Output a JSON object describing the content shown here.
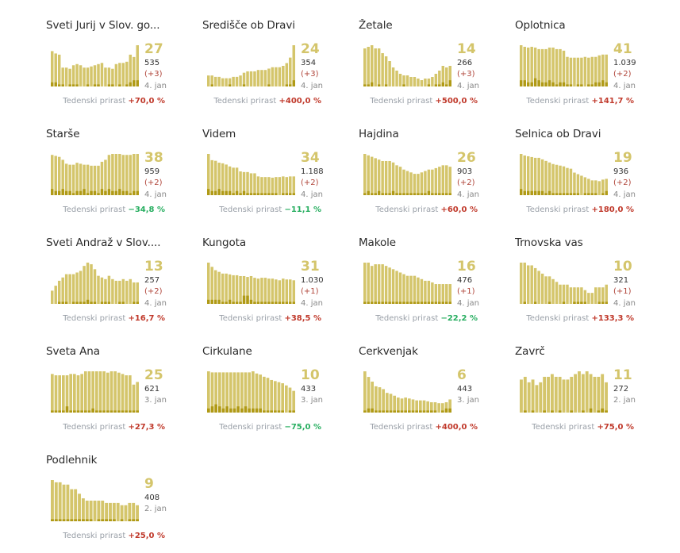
{
  "colors": {
    "bar_light": "#d4c56b",
    "bar_dark": "#b09a16",
    "accent": "#d4c56b",
    "increase": "#c0392b",
    "decrease": "#27ae60"
  },
  "weekly_label": "Tedenski prirast",
  "chart_data": [
    {
      "type": "bar",
      "title": "Sveti Jurij v Slov. go...",
      "active": 27,
      "total": "535",
      "delta": "(+3)",
      "date": "4. jan",
      "weekly": "+70,0 %",
      "weekly_trend": "up",
      "values": [
        30,
        28,
        27,
        16,
        16,
        15,
        18,
        19,
        18,
        16,
        16,
        17,
        18,
        19,
        20,
        16,
        16,
        15,
        19,
        20,
        20,
        21,
        27,
        25,
        35
      ],
      "new_cases": [
        2,
        2,
        1,
        1,
        0,
        1,
        1,
        1,
        0,
        0,
        1,
        0,
        1,
        1,
        0,
        0,
        1,
        1,
        0,
        1,
        0,
        1,
        2,
        3,
        3
      ]
    },
    {
      "type": "bar",
      "title": "Središče ob Dravi",
      "active": 24,
      "total": "354",
      "delta": "(+3)",
      "date": "4. jan",
      "weekly": "+400,0 %",
      "weekly_trend": "up",
      "values": [
        8,
        8,
        7,
        7,
        6,
        6,
        6,
        7,
        7,
        8,
        10,
        11,
        11,
        11,
        12,
        12,
        12,
        13,
        14,
        14,
        14,
        15,
        17,
        21,
        30
      ],
      "new_cases": [
        0,
        1,
        0,
        0,
        0,
        0,
        1,
        0,
        0,
        0,
        1,
        0,
        0,
        0,
        0,
        0,
        0,
        1,
        0,
        0,
        0,
        0,
        1,
        1,
        3
      ]
    },
    {
      "type": "bar",
      "title": "Žetale",
      "active": 14,
      "total": "266",
      "delta": "(+3)",
      "date": "4. jan",
      "weekly": "+500,0 %",
      "weekly_trend": "up",
      "values": [
        24,
        25,
        26,
        24,
        24,
        21,
        19,
        16,
        12,
        10,
        8,
        7,
        7,
        6,
        6,
        5,
        4,
        5,
        5,
        6,
        8,
        10,
        13,
        12,
        13
      ],
      "new_cases": [
        1,
        1,
        2,
        0,
        1,
        0,
        1,
        0,
        0,
        0,
        0,
        1,
        0,
        0,
        0,
        0,
        0,
        0,
        1,
        0,
        1,
        1,
        2,
        1,
        3
      ]
    },
    {
      "type": "bar",
      "title": "Oplotnica",
      "active": 41,
      "total": "1.039",
      "delta": "(+2)",
      "date": "4. jan",
      "weekly": "+141,7 %",
      "weekly_trend": "up",
      "values": [
        53,
        51,
        50,
        51,
        50,
        48,
        48,
        48,
        50,
        50,
        48,
        48,
        46,
        38,
        37,
        37,
        37,
        37,
        38,
        37,
        38,
        38,
        40,
        41,
        41
      ],
      "new_cases": [
        3,
        3,
        2,
        2,
        4,
        3,
        2,
        2,
        3,
        2,
        1,
        2,
        2,
        1,
        1,
        0,
        1,
        1,
        0,
        1,
        1,
        2,
        2,
        3,
        2
      ]
    },
    {
      "type": "bar",
      "title": "Starše",
      "active": 38,
      "total": "959",
      "delta": "(+2)",
      "date": "4. jan",
      "weekly": "−34,8 %",
      "weekly_trend": "down",
      "values": [
        41,
        40,
        39,
        36,
        32,
        31,
        31,
        33,
        32,
        31,
        31,
        30,
        30,
        30,
        34,
        36,
        41,
        42,
        42,
        42,
        41,
        41,
        41,
        42,
        42
      ],
      "new_cases": [
        3,
        2,
        2,
        3,
        2,
        2,
        1,
        2,
        2,
        3,
        1,
        2,
        2,
        1,
        3,
        2,
        3,
        2,
        2,
        3,
        2,
        2,
        1,
        2,
        2
      ]
    },
    {
      "type": "bar",
      "title": "Videm",
      "active": 34,
      "total": "1.188",
      "delta": "(+2)",
      "date": "4. jan",
      "weekly": "−11,1 %",
      "weekly_trend": "down",
      "values": [
        66,
        56,
        55,
        52,
        51,
        49,
        46,
        44,
        44,
        38,
        37,
        37,
        35,
        35,
        30,
        29,
        29,
        29,
        28,
        29,
        29,
        30,
        29,
        30,
        30
      ],
      "new_cases": [
        3,
        2,
        2,
        3,
        2,
        2,
        2,
        1,
        2,
        1,
        2,
        1,
        1,
        1,
        1,
        1,
        1,
        1,
        1,
        1,
        0,
        1,
        1,
        1,
        1
      ]
    },
    {
      "type": "bar",
      "title": "Hajdina",
      "active": 26,
      "total": "903",
      "delta": "(+2)",
      "date": "4. jan",
      "weekly": "+60,0 %",
      "weekly_trend": "up",
      "values": [
        29,
        28,
        27,
        26,
        25,
        24,
        24,
        24,
        23,
        21,
        20,
        18,
        17,
        16,
        15,
        15,
        16,
        17,
        18,
        18,
        19,
        20,
        21,
        21,
        20
      ],
      "new_cases": [
        1,
        2,
        1,
        1,
        2,
        1,
        1,
        1,
        2,
        1,
        1,
        1,
        1,
        1,
        1,
        1,
        1,
        1,
        2,
        1,
        1,
        1,
        1,
        1,
        1
      ]
    },
    {
      "type": "bar",
      "title": "Selnica ob Dravi",
      "active": 19,
      "total": "936",
      "delta": "(+2)",
      "date": "4. jan",
      "weekly": "+180,0 %",
      "weekly_trend": "up",
      "values": [
        53,
        51,
        50,
        49,
        48,
        48,
        46,
        44,
        42,
        40,
        39,
        38,
        37,
        35,
        34,
        29,
        27,
        25,
        23,
        21,
        19,
        19,
        18,
        20,
        21
      ],
      "new_cases": [
        3,
        2,
        2,
        2,
        2,
        2,
        2,
        1,
        2,
        1,
        1,
        1,
        1,
        1,
        1,
        1,
        1,
        0,
        1,
        1,
        1,
        1,
        0,
        1,
        2
      ]
    },
    {
      "type": "bar",
      "title": "Sveti Andraž v Slov....",
      "active": 13,
      "total": "257",
      "delta": "(+2)",
      "date": "4. jan",
      "weekly": "+16,7 %",
      "weekly_trend": "up",
      "values": [
        8,
        11,
        14,
        16,
        18,
        18,
        18,
        19,
        20,
        23,
        25,
        24,
        21,
        17,
        16,
        15,
        17,
        15,
        14,
        14,
        15,
        14,
        15,
        13,
        13
      ],
      "new_cases": [
        0,
        0,
        1,
        1,
        1,
        0,
        1,
        1,
        1,
        1,
        2,
        1,
        1,
        0,
        1,
        1,
        1,
        0,
        0,
        1,
        1,
        0,
        0,
        1,
        1
      ]
    },
    {
      "type": "bar",
      "title": "Kungota",
      "active": 31,
      "total": "1.030",
      "delta": "(+1)",
      "date": "4. jan",
      "weekly": "+38,5 %",
      "weekly_trend": "up",
      "values": [
        49,
        44,
        40,
        38,
        36,
        36,
        35,
        34,
        34,
        33,
        33,
        32,
        33,
        31,
        30,
        31,
        31,
        30,
        30,
        29,
        28,
        30,
        29,
        29,
        28
      ],
      "new_cases": [
        2,
        2,
        2,
        2,
        1,
        1,
        2,
        1,
        1,
        1,
        4,
        4,
        2,
        1,
        1,
        1,
        1,
        1,
        1,
        1,
        1,
        1,
        1,
        1,
        1
      ]
    },
    {
      "type": "bar",
      "title": "Makole",
      "active": 16,
      "total": "476",
      "delta": "(+1)",
      "date": "4. jan",
      "weekly": "−22,2 %",
      "weekly_trend": "down",
      "values": [
        25,
        25,
        23,
        24,
        24,
        24,
        23,
        22,
        21,
        20,
        19,
        18,
        17,
        17,
        17,
        16,
        15,
        14,
        14,
        13,
        12,
        12,
        12,
        12,
        12
      ],
      "new_cases": [
        1,
        1,
        1,
        1,
        1,
        1,
        1,
        1,
        1,
        1,
        1,
        1,
        1,
        1,
        1,
        1,
        1,
        1,
        1,
        1,
        1,
        1,
        1,
        1,
        1
      ]
    },
    {
      "type": "bar",
      "title": "Trnovska vas",
      "active": 10,
      "total": "321",
      "delta": "(+1)",
      "date": "4. jan",
      "weekly": "+133,3 %",
      "weekly_trend": "up",
      "values": [
        15,
        15,
        14,
        14,
        13,
        12,
        11,
        10,
        10,
        9,
        8,
        7,
        7,
        7,
        6,
        6,
        6,
        6,
        5,
        4,
        4,
        6,
        6,
        6,
        7
      ],
      "new_cases": [
        0,
        1,
        0,
        0,
        1,
        0,
        0,
        0,
        1,
        0,
        0,
        0,
        1,
        0,
        0,
        1,
        1,
        1,
        1,
        0,
        0,
        0,
        1,
        1,
        1
      ]
    },
    {
      "type": "bar",
      "title": "Sveta Ana",
      "active": 25,
      "total": "621",
      "delta": "",
      "date": "3. jan",
      "weekly": "+27,3 %",
      "weekly_trend": "up",
      "values": [
        29,
        28,
        28,
        28,
        28,
        29,
        29,
        28,
        29,
        31,
        31,
        31,
        31,
        31,
        31,
        30,
        31,
        31,
        30,
        29,
        28,
        28,
        21,
        23
      ],
      "new_cases": [
        1,
        1,
        1,
        1,
        3,
        1,
        1,
        1,
        1,
        1,
        1,
        2,
        1,
        1,
        1,
        1,
        1,
        1,
        1,
        1,
        1,
        1,
        1,
        1
      ]
    },
    {
      "type": "bar",
      "title": "Cirkulane",
      "active": 10,
      "total": "433",
      "delta": "",
      "date": "3. jan",
      "weekly": "−75,0 %",
      "weekly_trend": "down",
      "values": [
        38,
        37,
        37,
        37,
        37,
        37,
        37,
        37,
        37,
        37,
        37,
        37,
        38,
        36,
        35,
        33,
        32,
        30,
        29,
        28,
        27,
        25,
        23,
        20
      ],
      "new_cases": [
        2,
        3,
        4,
        3,
        2,
        3,
        2,
        2,
        3,
        2,
        3,
        2,
        2,
        2,
        2,
        1,
        1,
        1,
        1,
        1,
        1,
        0,
        1,
        1
      ]
    },
    {
      "type": "bar",
      "title": "Cerkvenjak",
      "active": 6,
      "total": "443",
      "delta": "",
      "date": "3. jan",
      "weekly": "+400,0 %",
      "weekly_trend": "up",
      "values": [
        44,
        38,
        33,
        28,
        27,
        25,
        21,
        20,
        18,
        16,
        15,
        16,
        15,
        14,
        13,
        13,
        13,
        12,
        11,
        11,
        10,
        10,
        11,
        14
      ],
      "new_cases": [
        1,
        2,
        2,
        1,
        1,
        1,
        1,
        1,
        1,
        1,
        1,
        1,
        1,
        1,
        1,
        1,
        1,
        1,
        1,
        1,
        0,
        1,
        2,
        2
      ]
    },
    {
      "type": "bar",
      "title": "Zavrč",
      "active": 11,
      "total": "272",
      "delta": "",
      "date": "2. jan",
      "weekly": "+75,0 %",
      "weekly_trend": "up",
      "values": [
        12,
        13,
        11,
        12,
        10,
        11,
        13,
        13,
        14,
        13,
        13,
        12,
        12,
        13,
        14,
        15,
        14,
        15,
        14,
        13,
        13,
        14,
        11
      ],
      "new_cases": [
        0,
        1,
        0,
        1,
        0,
        0,
        1,
        0,
        1,
        0,
        1,
        0,
        0,
        1,
        0,
        0,
        1,
        0,
        2,
        0,
        1,
        2,
        1
      ]
    },
    {
      "type": "bar",
      "title": "Podlehnik",
      "active": 9,
      "total": "408",
      "delta": "",
      "date": "2. jan",
      "weekly": "+25,0 %",
      "weekly_trend": "up",
      "values": [
        18,
        17,
        17,
        16,
        16,
        14,
        14,
        12,
        10,
        9,
        9,
        9,
        9,
        9,
        8,
        8,
        8,
        8,
        7,
        7,
        8,
        8,
        7
      ],
      "new_cases": [
        1,
        1,
        1,
        1,
        1,
        1,
        1,
        1,
        1,
        1,
        1,
        0,
        1,
        1,
        1,
        1,
        1,
        0,
        1,
        0,
        1,
        1,
        1
      ]
    }
  ]
}
